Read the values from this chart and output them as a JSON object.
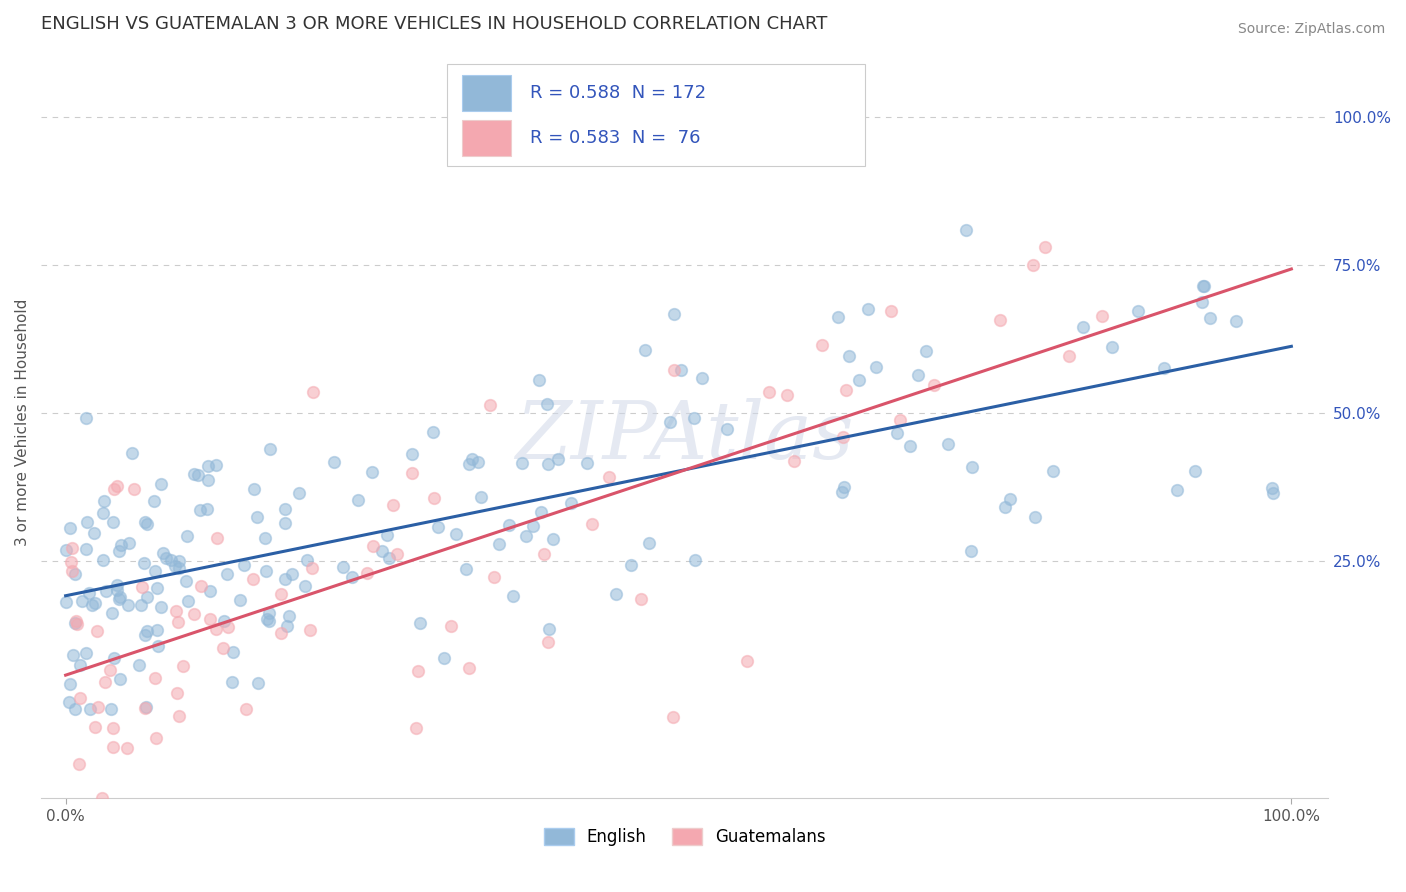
{
  "title": "ENGLISH VS GUATEMALAN 3 OR MORE VEHICLES IN HOUSEHOLD CORRELATION CHART",
  "source": "Source: ZipAtlas.com",
  "ylabel": "3 or more Vehicles in Household",
  "legend_label1": "English",
  "legend_label2": "Guatemalans",
  "r1": 0.588,
  "n1": 172,
  "r2": 0.583,
  "n2": 76,
  "english_color": "#92b8d8",
  "guatemalan_color": "#f4a8b0",
  "english_line_color": "#2b5fa5",
  "guatemalan_line_color": "#d9546a",
  "watermark": "ZIPAtlas",
  "background_color": "#ffffff",
  "grid_color": "#cccccc",
  "title_fontsize": 13,
  "axis_fontsize": 11,
  "legend_fontsize": 13,
  "legend_text_color": "#3355bb",
  "source_color": "#888888",
  "axis_label_color": "#3355bb",
  "ylabel_color": "#555555"
}
